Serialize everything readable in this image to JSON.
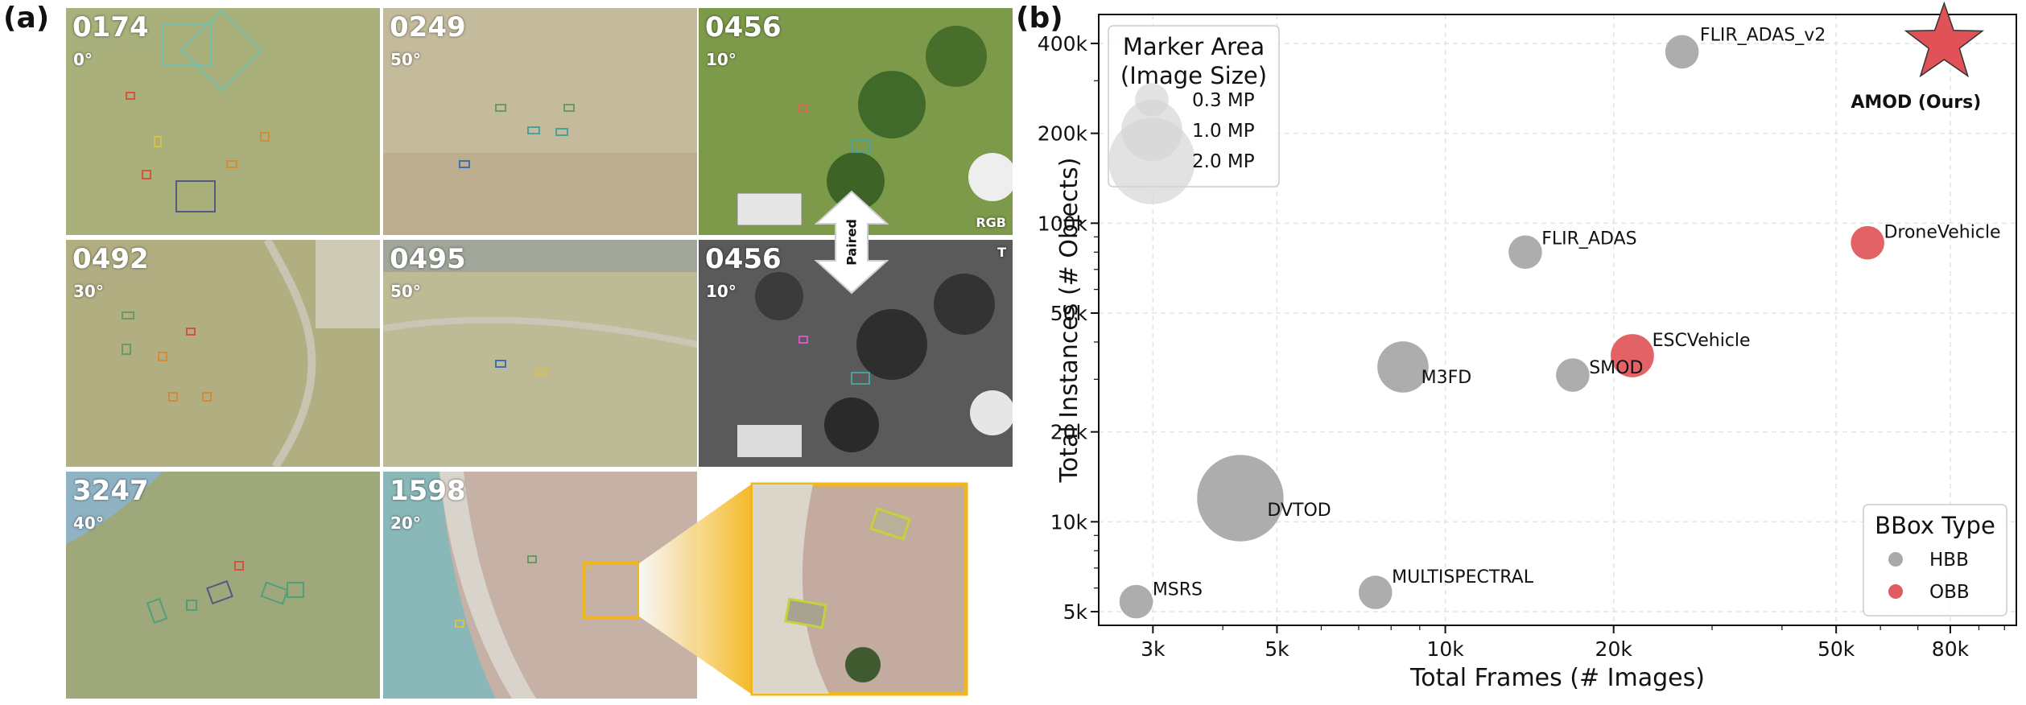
{
  "panels": {
    "a": "(a)",
    "b": "(b)"
  },
  "tiles": [
    {
      "id": "0174",
      "angle": "0°",
      "bg": "#a9b07c",
      "mod": ""
    },
    {
      "id": "0249",
      "angle": "50°",
      "bg": "#c4bb9c",
      "mod": ""
    },
    {
      "id": "0456",
      "angle": "10°",
      "bg": "#7d9a4a",
      "mod": "RGB"
    },
    {
      "id": "0492",
      "angle": "30°",
      "bg": "#b1ae82",
      "mod": ""
    },
    {
      "id": "0495",
      "angle": "50°",
      "bg": "#bdbb96",
      "mod": ""
    },
    {
      "id": "0456",
      "angle": "10°",
      "bg": "#5a5a5a",
      "mod": "T"
    },
    {
      "id": "3247",
      "angle": "40°",
      "bg": "#9ea87a",
      "mod": ""
    },
    {
      "id": "1598",
      "angle": "20°",
      "bg": "#c6b1a6",
      "mod": ""
    }
  ],
  "paired_label": "Paired",
  "colors": {
    "hbb": "#a9a9a9",
    "obb": "#e05a5e",
    "ours": "#e05257",
    "zoom": "#f2b61d"
  },
  "chart_data": {
    "type": "scatter",
    "xlabel": "Total Frames (# Images)",
    "ylabel": "Total Instances (# Objects)",
    "xscale": "log",
    "yscale": "log",
    "xlim": [
      2400,
      105000
    ],
    "ylim": [
      4500,
      500000
    ],
    "xticks": [
      3000,
      5000,
      10000,
      20000,
      50000,
      80000
    ],
    "xtick_labels": [
      "3k",
      "5k",
      "10k",
      "20k",
      "50k",
      "80k"
    ],
    "yticks": [
      5000,
      10000,
      20000,
      50000,
      100000,
      200000,
      400000
    ],
    "ytick_labels": [
      "5k",
      "10k",
      "20k",
      "50k",
      "100k",
      "200k",
      "400k"
    ],
    "grid": true,
    "points": [
      {
        "name": "FLIR_ADAS_v2",
        "frames": 26500,
        "instances": 375000,
        "mp": 0.3,
        "type": "HBB"
      },
      {
        "name": "FLIR_ADAS",
        "frames": 13900,
        "instances": 80000,
        "mp": 0.3,
        "type": "HBB"
      },
      {
        "name": "DroneVehicle",
        "frames": 56900,
        "instances": 86000,
        "mp": 0.3,
        "type": "OBB"
      },
      {
        "name": "ESCVehicle",
        "frames": 21600,
        "instances": 36000,
        "mp": 0.5,
        "type": "OBB"
      },
      {
        "name": "SMOD",
        "frames": 16900,
        "instances": 31000,
        "mp": 0.3,
        "type": "HBB"
      },
      {
        "name": "M3FD",
        "frames": 8400,
        "instances": 33000,
        "mp": 0.7,
        "type": "HBB"
      },
      {
        "name": "DVTOD",
        "frames": 4300,
        "instances": 12000,
        "mp": 2.0,
        "type": "HBB"
      },
      {
        "name": "MULTISPECTRAL",
        "frames": 7500,
        "instances": 5800,
        "mp": 0.3,
        "type": "HBB"
      },
      {
        "name": "MSRS",
        "frames": 2800,
        "instances": 5400,
        "mp": 0.3,
        "type": "HBB"
      }
    ],
    "ours": {
      "name": "AMOD (Ours)",
      "frames": 78000,
      "instances": 400000
    },
    "legend_size": {
      "title_line1": "Marker Area",
      "title_line2": "(Image Size)",
      "placement": "top-left",
      "entries": [
        {
          "label": "0.3 MP",
          "mp": 0.3
        },
        {
          "label": "1.0 MP",
          "mp": 1.0
        },
        {
          "label": "2.0 MP",
          "mp": 2.0
        }
      ]
    },
    "legend_type": {
      "title": "BBox Type",
      "placement": "bottom-right",
      "entries": [
        {
          "label": "HBB",
          "type": "HBB"
        },
        {
          "label": "OBB",
          "type": "OBB"
        }
      ]
    }
  }
}
